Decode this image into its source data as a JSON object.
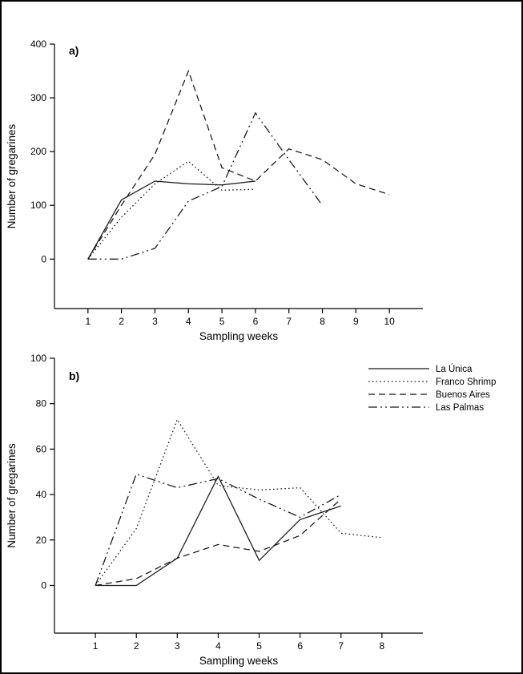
{
  "page": {
    "background": "#ffffff",
    "border_color": "#000000",
    "line_color": "#161616"
  },
  "chart_data": [
    {
      "id": "panel-a",
      "type": "line",
      "panel_label": "a)",
      "xlabel": "Sampling weeks",
      "ylabel": "Number of gregarines",
      "xlim": [
        0,
        11
      ],
      "ylim": [
        -92,
        400
      ],
      "xticks": [
        1,
        2,
        3,
        4,
        5,
        6,
        7,
        8,
        9,
        10
      ],
      "yticks": [
        0,
        100,
        200,
        300,
        400
      ],
      "grid": false,
      "show_legend": false,
      "series": [
        {
          "name": "La Única",
          "line_style": "solid",
          "x": [
            1,
            2,
            3,
            4,
            5,
            6
          ],
          "y": [
            0,
            110,
            145,
            140,
            138,
            145
          ]
        },
        {
          "name": "Franco Shrimp",
          "line_style": "dotted",
          "x": [
            1,
            2,
            3,
            4,
            5,
            6
          ],
          "y": [
            0,
            78,
            140,
            182,
            128,
            130
          ]
        },
        {
          "name": "Buenos Aires",
          "line_style": "dashed",
          "x": [
            1,
            2,
            3,
            4,
            5,
            6,
            7,
            8,
            9,
            10
          ],
          "y": [
            0,
            100,
            195,
            350,
            170,
            145,
            205,
            185,
            140,
            120
          ]
        },
        {
          "name": "Las Palmas",
          "line_style": "dash-dot-dot",
          "x": [
            1,
            2,
            3,
            4,
            5,
            6,
            7,
            8
          ],
          "y": [
            0,
            0,
            20,
            108,
            135,
            272,
            185,
            100
          ]
        }
      ]
    },
    {
      "id": "panel-b",
      "type": "line",
      "panel_label": "b)",
      "xlabel": "Sampling weeks",
      "ylabel": "Number of gregarines",
      "xlim": [
        0,
        9
      ],
      "ylim": [
        -21,
        100
      ],
      "xticks": [
        1,
        2,
        3,
        4,
        5,
        6,
        7,
        8
      ],
      "yticks": [
        0,
        20,
        40,
        60,
        80,
        100
      ],
      "grid": false,
      "show_legend": true,
      "legend_position": "top-right",
      "series": [
        {
          "name": "La Única",
          "line_style": "solid",
          "x": [
            1,
            2,
            3,
            4,
            5,
            6,
            7
          ],
          "y": [
            0,
            0,
            12,
            48,
            11,
            29,
            35
          ]
        },
        {
          "name": "Franco Shrimp",
          "line_style": "dotted",
          "x": [
            1,
            2,
            3,
            4,
            5,
            6,
            7,
            8
          ],
          "y": [
            0,
            25,
            73,
            44,
            42,
            43,
            23,
            21
          ]
        },
        {
          "name": "Buenos Aires",
          "line_style": "dashed",
          "x": [
            1,
            2,
            3,
            4,
            5,
            6,
            7
          ],
          "y": [
            0,
            3,
            12,
            18,
            15,
            22,
            38
          ]
        },
        {
          "name": "Las Palmas",
          "line_style": "dash-dot-dot",
          "x": [
            1,
            2,
            3,
            4,
            5,
            6,
            7
          ],
          "y": [
            0,
            49,
            43,
            47,
            38,
            30,
            40
          ]
        }
      ]
    }
  ]
}
